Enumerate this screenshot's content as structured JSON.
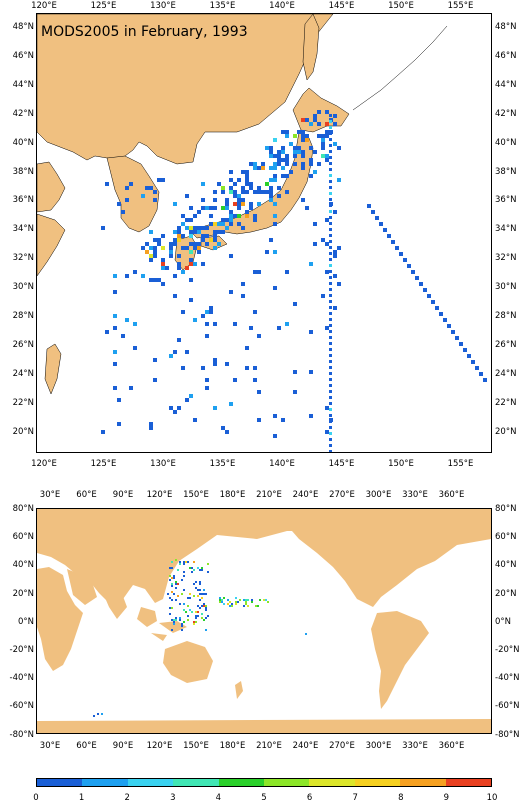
{
  "title": "MODS2005 in February, 1993",
  "top_map": {
    "lon_labels": [
      "120°E",
      "125°E",
      "130°E",
      "135°E",
      "140°E",
      "145°E",
      "150°E",
      "155°E"
    ],
    "lat_labels": [
      "48°N",
      "46°N",
      "44°N",
      "42°N",
      "40°N",
      "38°N",
      "36°N",
      "34°N",
      "32°N",
      "30°N",
      "28°N",
      "26°N",
      "24°N",
      "22°N",
      "20°N"
    ]
  },
  "bottom_map": {
    "lon_labels": [
      "30°E",
      "60°E",
      "90°E",
      "120°E",
      "150°E",
      "180°E",
      "210°E",
      "240°E",
      "270°E",
      "300°E",
      "330°E",
      "360°E"
    ],
    "lat_labels": [
      "80°N",
      "60°N",
      "40°N",
      "20°N",
      "0°N",
      "-20°N",
      "-40°N",
      "-60°N",
      "-80°N"
    ]
  },
  "colorbar": {
    "labels": [
      "0",
      "1",
      "2",
      "3",
      "4",
      "5",
      "6",
      "7",
      "8",
      "9",
      "10"
    ],
    "colors": [
      "#1a5fd6",
      "#1ea0f0",
      "#3ad2f0",
      "#40e6b4",
      "#2ad02a",
      "#8ce628",
      "#dce62a",
      "#f5d020",
      "#f5a020",
      "#e84020"
    ]
  },
  "colors": {
    "land": "#f0c080",
    "sea": "#ffffff"
  }
}
